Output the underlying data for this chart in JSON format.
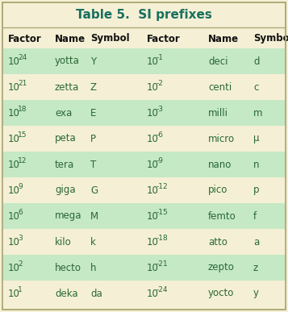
{
  "title": "Table 5.  SI prefixes",
  "title_color": "#1a7060",
  "background_color": "#f5f0d5",
  "row_bg_green": "#c5e8c5",
  "row_bg_cream": "#f5f0d5",
  "border_color": "#b0a878",
  "header_text_color": "#111111",
  "text_color": "#2a6835",
  "left_rows": [
    [
      "10",
      "24",
      "yotta",
      "Y"
    ],
    [
      "10",
      "21",
      "zetta",
      "Z"
    ],
    [
      "10",
      "18",
      "exa",
      "E"
    ],
    [
      "10",
      "15",
      "peta",
      "P"
    ],
    [
      "10",
      "12",
      "tera",
      "T"
    ],
    [
      "10",
      "9",
      "giga",
      "G"
    ],
    [
      "10",
      "6",
      "mega",
      "M"
    ],
    [
      "10",
      "3",
      "kilo",
      "k"
    ],
    [
      "10",
      "2",
      "hecto",
      "h"
    ],
    [
      "10",
      "1",
      "deka",
      "da"
    ]
  ],
  "right_rows": [
    [
      "10",
      "-1",
      "deci",
      "d"
    ],
    [
      "10",
      "-2",
      "centi",
      "c"
    ],
    [
      "10",
      "-3",
      "milli",
      "m"
    ],
    [
      "10",
      "-6",
      "micro",
      "μ"
    ],
    [
      "10",
      "-9",
      "nano",
      "n"
    ],
    [
      "10",
      "-12",
      "pico",
      "p"
    ],
    [
      "10",
      "-15",
      "femto",
      "f"
    ],
    [
      "10",
      "-18",
      "atto",
      "a"
    ],
    [
      "10",
      "-21",
      "zepto",
      "z"
    ],
    [
      "10",
      "-24",
      "yocto",
      "y"
    ]
  ],
  "green_rows": [
    0,
    2,
    4,
    6,
    8
  ],
  "title_fontsize": 11,
  "header_fontsize": 8.5,
  "body_fontsize": 8.5,
  "sup_fontsize": 6.5
}
